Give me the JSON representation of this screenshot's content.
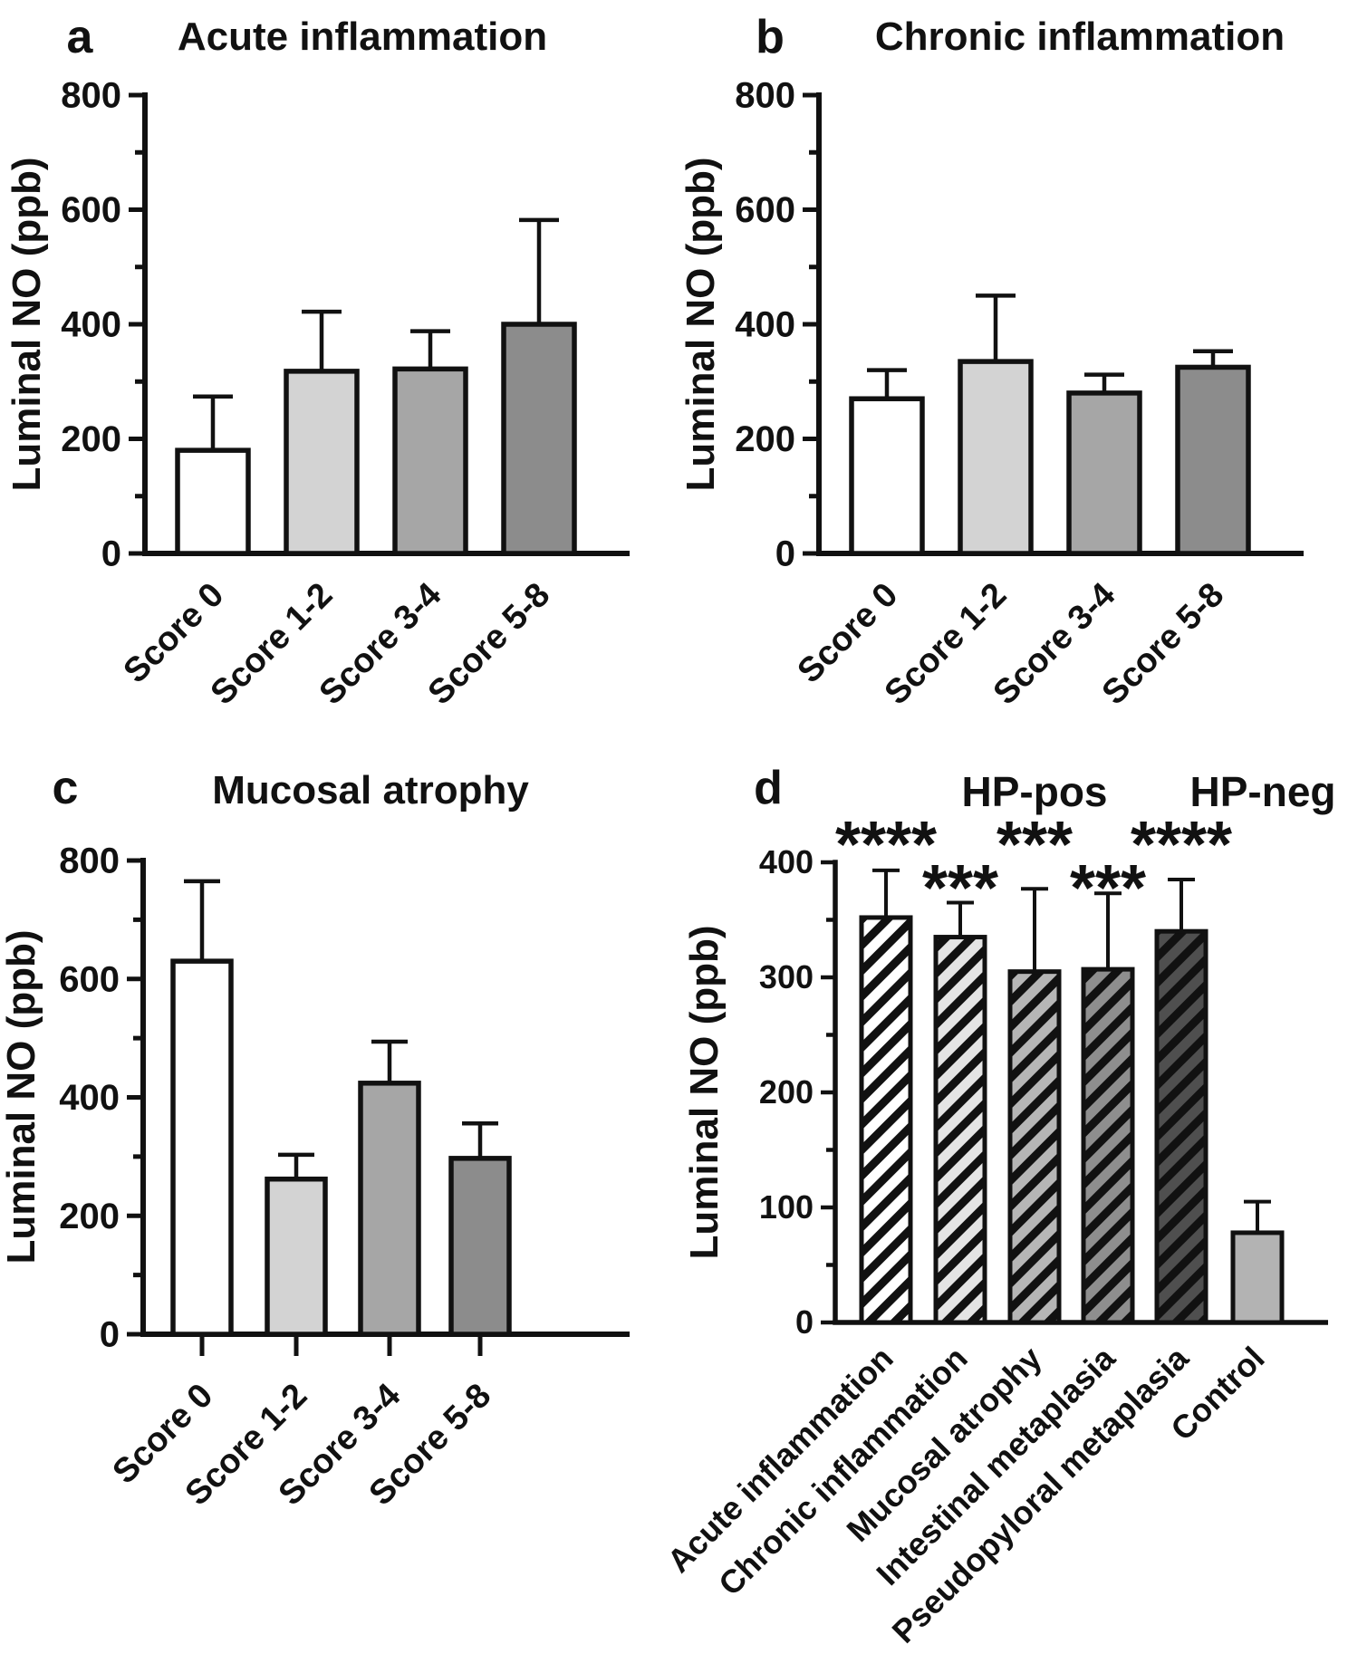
{
  "figure": {
    "description": "Four-panel bar chart figure of luminal nitric oxide (ppb) by histology score and diagnosis group",
    "accent_black": "#111111",
    "background": "#ffffff"
  },
  "chart_data": [
    {
      "id": "a",
      "type": "bar",
      "letter": "a",
      "title": "Acute inflammation",
      "ylabel": "Luminal NO (ppb)",
      "ylim": [
        0,
        800
      ],
      "ytick_step": 200,
      "minor_tick_step": 100,
      "grid": false,
      "legend": null,
      "categories": [
        "Score 0",
        "Score 1-2",
        "Score 3-4",
        "Score 5-8"
      ],
      "values": [
        180,
        318,
        322,
        400
      ],
      "error_bar_tops": [
        274,
        422,
        388,
        582
      ],
      "bar_fills": [
        "#ffffff",
        "#d3d3d3",
        "#a6a6a6",
        "#8c8c8c"
      ],
      "hatched": [
        false,
        false,
        false,
        false
      ]
    },
    {
      "id": "b",
      "type": "bar",
      "letter": "b",
      "title": "Chronic inflammation",
      "ylabel": "Luminal NO (ppb)",
      "ylim": [
        0,
        800
      ],
      "ytick_step": 200,
      "minor_tick_step": 100,
      "grid": false,
      "legend": null,
      "categories": [
        "Score 0",
        "Score 1-2",
        "Score 3-4",
        "Score 5-8"
      ],
      "values": [
        270,
        335,
        280,
        325
      ],
      "error_bar_tops": [
        320,
        450,
        312,
        353
      ],
      "bar_fills": [
        "#ffffff",
        "#d3d3d3",
        "#a6a6a6",
        "#8c8c8c"
      ],
      "hatched": [
        false,
        false,
        false,
        false
      ]
    },
    {
      "id": "c",
      "type": "bar",
      "letter": "c",
      "title": "Mucosal atrophy",
      "ylabel": "Luminal NO (ppb)",
      "ylim": [
        0,
        800
      ],
      "ytick_step": 200,
      "minor_tick_step": 100,
      "grid": false,
      "legend": null,
      "categories": [
        "Score 0",
        "Score 1-2",
        "Score 3-4",
        "Score 5-8"
      ],
      "values": [
        630,
        262,
        424,
        297
      ],
      "error_bar_tops": [
        765,
        303,
        494,
        356
      ],
      "bar_fills": [
        "#ffffff",
        "#d3d3d3",
        "#a6a6a6",
        "#8c8c8c"
      ],
      "hatched": [
        false,
        false,
        false,
        false
      ]
    },
    {
      "id": "d",
      "type": "bar",
      "letter": "d",
      "title": null,
      "group_headers": [
        "HP-pos",
        "HP-neg"
      ],
      "ylabel": "Luminal NO (ppb)",
      "ylim": [
        0,
        400
      ],
      "ytick_step": 100,
      "minor_tick_step": 50,
      "grid": false,
      "legend": null,
      "categories": [
        "Acute inflammation",
        "Chronic inflammation",
        "Mucosal atrophy",
        "Intestinal metaplasia",
        "Pseudopyloral metaplasia",
        "Control"
      ],
      "values": [
        352,
        335,
        305,
        307,
        340,
        78
      ],
      "error_bar_tops": [
        393,
        365,
        377,
        373,
        385,
        105
      ],
      "bar_fills": [
        "#ffffff",
        "#e4e4e4",
        "#b6b6b6",
        "#8e8e8e",
        "#4f4f4f",
        "#b3b3b3"
      ],
      "hatched": [
        true,
        true,
        true,
        true,
        true,
        false
      ],
      "significance": [
        {
          "text": "****",
          "category_index": 0,
          "row": "upper"
        },
        {
          "text": "***",
          "category_index": 1,
          "row": "lower"
        },
        {
          "text": "***",
          "category_index": 2,
          "row": "upper"
        },
        {
          "text": "***",
          "category_index": 3,
          "row": "lower"
        },
        {
          "text": "****",
          "category_index": 4,
          "row": "upper"
        }
      ]
    }
  ]
}
